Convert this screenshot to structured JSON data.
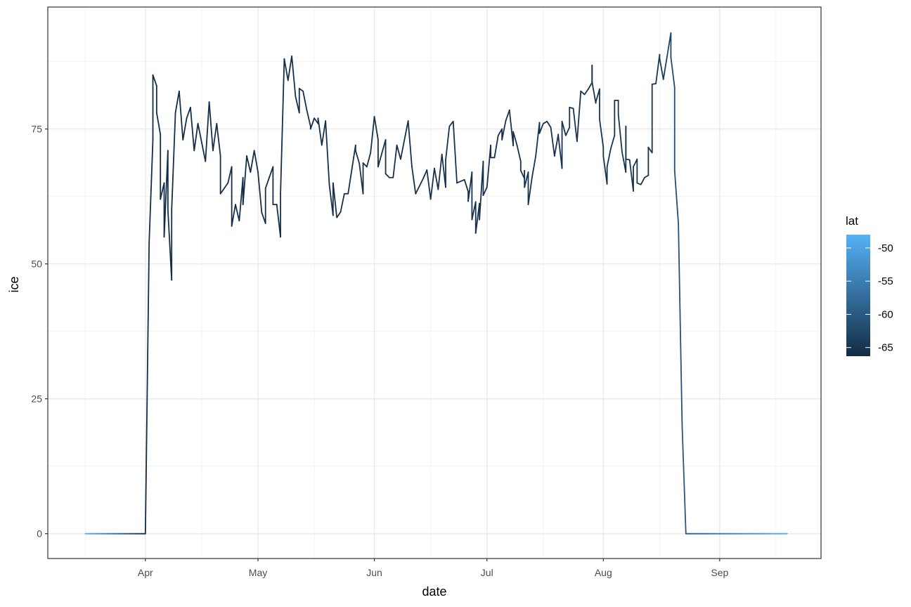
{
  "chart_data": {
    "type": "line",
    "title": "",
    "xlabel": "date",
    "ylabel": "ice",
    "x_tick_labels": [
      "Apr",
      "May",
      "Jun",
      "Jul",
      "Aug",
      "Sep"
    ],
    "x_ticks": [
      "04-01",
      "05-01",
      "06-01",
      "07-01",
      "08-01",
      "09-01"
    ],
    "x_minor_ticks": [
      "03-16",
      "04-16",
      "05-16",
      "06-16",
      "07-16",
      "08-16",
      "09-16"
    ],
    "xlim": [
      "03-06",
      "09-28"
    ],
    "y_ticks": [
      0,
      25,
      50,
      75
    ],
    "y_tick_labels": [
      "0",
      "25",
      "50",
      "75"
    ],
    "ylim": [
      -4.6,
      97.6
    ],
    "grid": true,
    "theme": "bw",
    "color_by": "lat",
    "legend": {
      "title": "lat",
      "placement": "right",
      "type": "colorbar",
      "range": [
        -66.3,
        -48
      ],
      "ticks": [
        -50,
        -55,
        -60,
        -65
      ],
      "tick_labels": [
        "-50",
        "-55",
        "-60",
        "-65"
      ],
      "low_color": "#132B43",
      "high_color": "#56B1F7"
    },
    "lat_series": [
      [
        "03-16",
        -48
      ],
      [
        "04-01",
        -66
      ],
      [
        "08-15",
        -65
      ],
      [
        "08-23",
        -60
      ],
      [
        "09-19",
        -48
      ]
    ],
    "points": [
      [
        "03-16",
        0
      ],
      [
        "04-01",
        0
      ],
      [
        "04-02",
        54
      ],
      [
        "04-03",
        73
      ],
      [
        "04-03",
        85
      ],
      [
        "04-04",
        83
      ],
      [
        "04-04",
        78
      ],
      [
        "04-05",
        74
      ],
      [
        "04-05",
        66
      ],
      [
        "04-05",
        62
      ],
      [
        "04-06",
        65
      ],
      [
        "04-06",
        55
      ],
      [
        "04-07",
        71
      ],
      [
        "04-07",
        60
      ],
      [
        "04-08",
        47
      ],
      [
        "04-08",
        60
      ],
      [
        "04-09",
        78
      ],
      [
        "04-10",
        82
      ],
      [
        "04-11",
        73
      ],
      [
        "04-12",
        77
      ],
      [
        "04-13",
        79
      ],
      [
        "04-14",
        71
      ],
      [
        "04-15",
        76
      ],
      [
        "04-17",
        69
      ],
      [
        "04-18",
        80
      ],
      [
        "04-19",
        71
      ],
      [
        "04-20",
        76
      ],
      [
        "04-21",
        70
      ],
      [
        "04-21",
        63
      ],
      [
        "04-23",
        65
      ],
      [
        "04-24",
        68
      ],
      [
        "04-24",
        57
      ],
      [
        "04-25",
        61
      ],
      [
        "04-26",
        58
      ],
      [
        "04-27",
        66
      ],
      [
        "04-27",
        61
      ],
      [
        "04-28",
        70
      ],
      [
        "04-29",
        67
      ],
      [
        "04-30",
        71
      ],
      [
        "05-01",
        67
      ],
      [
        "05-02",
        59.5
      ],
      [
        "05-03",
        57.5
      ],
      [
        "05-03",
        64
      ],
      [
        "05-05",
        68
      ],
      [
        "05-05",
        61
      ],
      [
        "05-06",
        61
      ],
      [
        "05-07",
        55
      ],
      [
        "05-07",
        63
      ],
      [
        "05-08",
        88
      ],
      [
        "05-09",
        84
      ],
      [
        "05-10",
        88.5
      ],
      [
        "05-11",
        81
      ],
      [
        "05-12",
        78
      ],
      [
        "05-12",
        82.5
      ],
      [
        "05-13",
        82
      ],
      [
        "05-14",
        78.5
      ],
      [
        "05-15",
        75.5
      ],
      [
        "05-15",
        75
      ],
      [
        "05-16",
        77
      ],
      [
        "05-17",
        76
      ],
      [
        "05-17",
        77
      ],
      [
        "05-18",
        72
      ],
      [
        "05-19",
        76.5
      ],
      [
        "05-20",
        64.7
      ],
      [
        "05-21",
        59
      ],
      [
        "05-21",
        65
      ],
      [
        "05-22",
        58.6
      ],
      [
        "05-23",
        59.6
      ],
      [
        "05-24",
        63
      ],
      [
        "05-25",
        63
      ],
      [
        "05-27",
        72
      ],
      [
        "05-27",
        71
      ],
      [
        "05-28",
        68.6
      ],
      [
        "05-29",
        63
      ],
      [
        "05-29",
        68.7
      ],
      [
        "05-30",
        68
      ],
      [
        "05-31",
        70.6
      ],
      [
        "06-01",
        77.3
      ],
      [
        "06-02",
        73
      ],
      [
        "06-02",
        68
      ],
      [
        "06-04",
        73
      ],
      [
        "06-04",
        66.7
      ],
      [
        "06-05",
        66
      ],
      [
        "06-06",
        66
      ],
      [
        "06-07",
        72
      ],
      [
        "06-08",
        69.4
      ],
      [
        "06-10",
        76.5
      ],
      [
        "06-11",
        68
      ],
      [
        "06-12",
        63
      ],
      [
        "06-14",
        65.8
      ],
      [
        "06-15",
        67.4
      ],
      [
        "06-16",
        62
      ],
      [
        "06-17",
        67.7
      ],
      [
        "06-18",
        63.8
      ],
      [
        "06-19",
        70.3
      ],
      [
        "06-20",
        64.2
      ],
      [
        "06-20",
        69.3
      ],
      [
        "06-21",
        75.5
      ],
      [
        "06-22",
        76.4
      ],
      [
        "06-22",
        76.4
      ],
      [
        "06-23",
        65
      ],
      [
        "06-25",
        65.6
      ],
      [
        "06-26",
        63.4
      ],
      [
        "06-26",
        61.6
      ],
      [
        "06-27",
        67
      ],
      [
        "06-27",
        58.2
      ],
      [
        "06-28",
        61.5
      ],
      [
        "06-28",
        55.7
      ],
      [
        "06-29",
        61.2
      ],
      [
        "06-29",
        58.2
      ],
      [
        "06-30",
        69
      ],
      [
        "06-30",
        62.7
      ],
      [
        "07-01",
        64.2
      ],
      [
        "07-02",
        72
      ],
      [
        "07-02",
        69.7
      ],
      [
        "07-03",
        69.7
      ],
      [
        "07-04",
        73.8
      ],
      [
        "07-05",
        75
      ],
      [
        "07-05",
        73
      ],
      [
        "07-06",
        76.5
      ],
      [
        "07-07",
        78.5
      ],
      [
        "07-07",
        78.4
      ],
      [
        "07-08",
        71.9
      ],
      [
        "07-08",
        74.5
      ],
      [
        "07-09",
        72
      ],
      [
        "07-10",
        69
      ],
      [
        "07-10",
        67.3
      ],
      [
        "07-11",
        65.8
      ],
      [
        "07-11",
        67.3
      ],
      [
        "07-11",
        64.2
      ],
      [
        "07-12",
        67
      ],
      [
        "07-12",
        61
      ],
      [
        "07-13",
        66
      ],
      [
        "07-14",
        70
      ],
      [
        "07-15",
        76.2
      ],
      [
        "07-15",
        74.2
      ],
      [
        "07-16",
        76
      ],
      [
        "07-17",
        76.4
      ],
      [
        "07-18",
        75.3
      ],
      [
        "07-19",
        70
      ],
      [
        "07-20",
        74
      ],
      [
        "07-20",
        73.8
      ],
      [
        "07-21",
        67.7
      ],
      [
        "07-21",
        76.4
      ],
      [
        "07-22",
        73.8
      ],
      [
        "07-23",
        75.3
      ],
      [
        "07-23",
        79
      ],
      [
        "07-24",
        78.8
      ],
      [
        "07-25",
        72.7
      ],
      [
        "07-25",
        72.7
      ],
      [
        "07-26",
        82
      ],
      [
        "07-27",
        81.4
      ],
      [
        "07-28",
        82.4
      ],
      [
        "07-29",
        83.6
      ],
      [
        "07-29",
        86.8
      ],
      [
        "07-29",
        83.7
      ],
      [
        "07-30",
        79.8
      ],
      [
        "07-30",
        80
      ],
      [
        "07-31",
        82.4
      ],
      [
        "07-31",
        76.8
      ],
      [
        "08-01",
        71.6
      ],
      [
        "08-01",
        70
      ],
      [
        "08-02",
        64.8
      ],
      [
        "08-02",
        68
      ],
      [
        "08-03",
        71.4
      ],
      [
        "08-04",
        73.8
      ],
      [
        "08-04",
        80.3
      ],
      [
        "08-05",
        80.3
      ],
      [
        "08-05",
        77.7
      ],
      [
        "08-06",
        70.7
      ],
      [
        "08-07",
        67
      ],
      [
        "08-07",
        75.5
      ],
      [
        "08-07",
        69.4
      ],
      [
        "08-08",
        69.3
      ],
      [
        "08-09",
        63.5
      ],
      [
        "08-09",
        68
      ],
      [
        "08-10",
        69.4
      ],
      [
        "08-10",
        65
      ],
      [
        "08-11",
        64.7
      ],
      [
        "08-12",
        66
      ],
      [
        "08-13",
        66.4
      ],
      [
        "08-13",
        71.6
      ],
      [
        "08-14",
        70.6
      ],
      [
        "08-14",
        83.3
      ],
      [
        "08-15",
        83.4
      ],
      [
        "08-16",
        88.8
      ],
      [
        "08-16",
        88.1
      ],
      [
        "08-17",
        84.2
      ],
      [
        "08-18",
        88.5
      ],
      [
        "08-19",
        92.8
      ],
      [
        "08-19",
        88.3
      ],
      [
        "08-20",
        82.7
      ],
      [
        "08-20",
        67.3
      ],
      [
        "08-21",
        57.5
      ],
      [
        "08-22",
        20
      ],
      [
        "08-23",
        0
      ],
      [
        "09-19",
        0
      ]
    ]
  }
}
